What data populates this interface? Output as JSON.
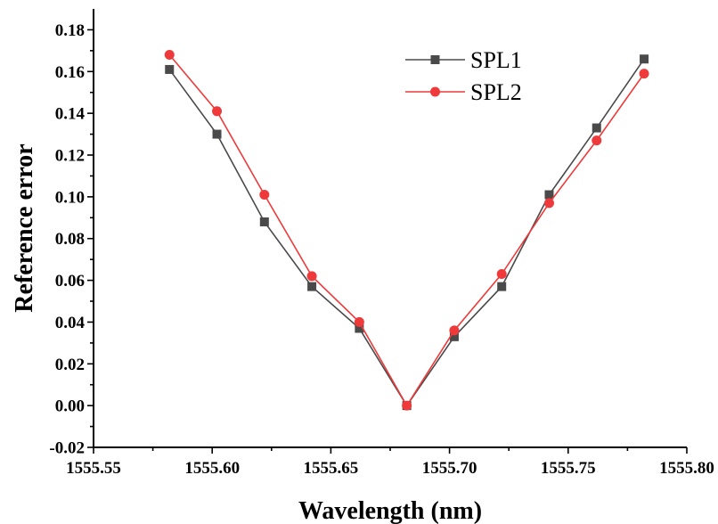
{
  "chart_data": {
    "type": "line",
    "xlabel": "Wavelength (nm)",
    "ylabel": "Reference error",
    "xlim": [
      1555.55,
      1555.8
    ],
    "ylim": [
      -0.02,
      0.19
    ],
    "x_ticks": [
      "1555.55",
      "1555.60",
      "1555.65",
      "1555.70",
      "1555.75",
      "1555.80"
    ],
    "y_ticks": [
      "-0.02",
      "0.00",
      "0.02",
      "0.04",
      "0.06",
      "0.08",
      "0.10",
      "0.12",
      "0.14",
      "0.16",
      "0.18"
    ],
    "legend_position": "top-right",
    "grid": false,
    "series": [
      {
        "name": "SPL1",
        "color": "#4a4a4a",
        "marker": "square",
        "x": [
          1555.582,
          1555.602,
          1555.622,
          1555.642,
          1555.662,
          1555.682,
          1555.702,
          1555.722,
          1555.742,
          1555.762,
          1555.782
        ],
        "y": [
          0.161,
          0.13,
          0.088,
          0.057,
          0.037,
          0.0,
          0.033,
          0.057,
          0.101,
          0.133,
          0.166
        ]
      },
      {
        "name": "SPL2",
        "color": "#ee3a3a",
        "marker": "circle",
        "x": [
          1555.582,
          1555.602,
          1555.622,
          1555.642,
          1555.662,
          1555.682,
          1555.702,
          1555.722,
          1555.742,
          1555.762,
          1555.782
        ],
        "y": [
          0.168,
          0.141,
          0.101,
          0.062,
          0.04,
          0.0,
          0.036,
          0.063,
          0.097,
          0.127,
          0.159
        ]
      }
    ]
  }
}
